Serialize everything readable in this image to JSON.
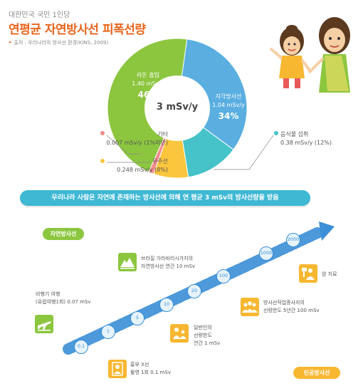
{
  "header": {
    "subtitle": "대한민국 국민 1인당",
    "title": "연평균 자연방사선 피폭선량",
    "source": "출처 : 우리나라의 방사선 환경(KINS, 2009)"
  },
  "chart_data": {
    "type": "pie",
    "center_label": "3 mSv/y",
    "total_msv": 3,
    "slices": [
      {
        "name": "지각방사선",
        "value_label": "1.04 mSv/y",
        "value": 1.04,
        "percent": 34,
        "percent_label": "34%",
        "color": "#5aaee0"
      },
      {
        "name": "음식물 섭취",
        "value_label": "0.38 mSv/y (12%)",
        "value": 0.38,
        "percent": 12,
        "color": "#45c3c8"
      },
      {
        "name": "우주선",
        "value_label": "0.248 mSv/y (8%)",
        "value": 0.248,
        "percent": 8,
        "color": "#fbc63d"
      },
      {
        "name": "기타",
        "value_label": "0.007 mSv/y (1%미만)",
        "value": 0.007,
        "percent": 1,
        "color": "#f38b8b"
      },
      {
        "name": "라돈 흡입",
        "value_label": "1.40 mSv/y",
        "value": 1.4,
        "percent": 46,
        "percent_label": "46%",
        "color": "#8cc63f"
      }
    ]
  },
  "banner": "우리나라 사람은 자연에 존재하는 방사선에 의해 연 평균 3 mSv의 방사선량을 받음",
  "legend_pills": {
    "natural": "자연방사선",
    "artificial": "인공방사선"
  },
  "scale": {
    "ticks": [
      "0.1",
      "1",
      "5",
      "10",
      "20",
      "100",
      "1000",
      "2000"
    ]
  },
  "events": {
    "flight": {
      "line1": "비행기 여행",
      "line2": "(유럽여행1회) 0.07 mSv",
      "category": "natural",
      "icon": "airplane-icon"
    },
    "xray": {
      "line1": "흉부 X선",
      "line2": "촬영 1회 0.1 mSv",
      "category": "artificial",
      "icon": "xray-icon"
    },
    "public": {
      "line1": "일반인의",
      "line2": "선량한도",
      "line3": "연간 1 mSv",
      "category": "artificial",
      "icon": "family-icon"
    },
    "brazil": {
      "line1": "브라질 가라바리시가지의",
      "line2": "자연방사선 연간 10 mSv",
      "category": "natural",
      "icon": "mountain-icon"
    },
    "worker": {
      "line1": "방사선작업종사자의",
      "line2": "선량한도 5년간 100 mSv",
      "category": "artificial",
      "icon": "workers-icon"
    },
    "cancer": {
      "line1": "암 치료",
      "category": "artificial",
      "icon": "treatment-icon"
    }
  },
  "colors": {
    "title": "#e8641b",
    "banner": "#3fb8d4",
    "scale_arrow": "#3a8fd6",
    "natural": "#8cc63f",
    "artificial": "#f7b731"
  }
}
